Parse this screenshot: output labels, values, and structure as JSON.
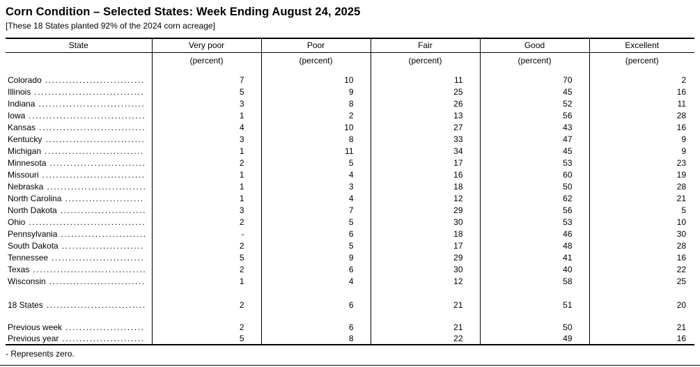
{
  "page": {
    "title": "Corn Condition – Selected States: Week Ending August 24, 2025",
    "subtitle": "[These 18 States planted 92% of the 2024 corn acreage]",
    "footnote": "- Represents zero."
  },
  "table": {
    "columns": [
      {
        "label": "State",
        "unit": ""
      },
      {
        "label": "Very poor",
        "unit": "(percent)"
      },
      {
        "label": "Poor",
        "unit": "(percent)"
      },
      {
        "label": "Fair",
        "unit": "(percent)"
      },
      {
        "label": "Good",
        "unit": "(percent)"
      },
      {
        "label": "Excellent",
        "unit": "(percent)"
      }
    ],
    "rows": [
      {
        "state": "Colorado",
        "very_poor": "7",
        "poor": "10",
        "fair": "11",
        "good": "70",
        "excellent": "2"
      },
      {
        "state": "Illinois",
        "very_poor": "5",
        "poor": "9",
        "fair": "25",
        "good": "45",
        "excellent": "16"
      },
      {
        "state": "Indiana",
        "very_poor": "3",
        "poor": "8",
        "fair": "26",
        "good": "52",
        "excellent": "11"
      },
      {
        "state": "Iowa",
        "very_poor": "1",
        "poor": "2",
        "fair": "13",
        "good": "56",
        "excellent": "28"
      },
      {
        "state": "Kansas",
        "very_poor": "4",
        "poor": "10",
        "fair": "27",
        "good": "43",
        "excellent": "16"
      },
      {
        "state": "Kentucky",
        "very_poor": "3",
        "poor": "8",
        "fair": "33",
        "good": "47",
        "excellent": "9"
      },
      {
        "state": "Michigan",
        "very_poor": "1",
        "poor": "11",
        "fair": "34",
        "good": "45",
        "excellent": "9"
      },
      {
        "state": "Minnesota",
        "very_poor": "2",
        "poor": "5",
        "fair": "17",
        "good": "53",
        "excellent": "23"
      },
      {
        "state": "Missouri",
        "very_poor": "1",
        "poor": "4",
        "fair": "16",
        "good": "60",
        "excellent": "19"
      },
      {
        "state": "Nebraska",
        "very_poor": "1",
        "poor": "3",
        "fair": "18",
        "good": "50",
        "excellent": "28"
      },
      {
        "state": "North Carolina",
        "very_poor": "1",
        "poor": "4",
        "fair": "12",
        "good": "62",
        "excellent": "21"
      },
      {
        "state": "North Dakota",
        "very_poor": "3",
        "poor": "7",
        "fair": "29",
        "good": "56",
        "excellent": "5"
      },
      {
        "state": "Ohio",
        "very_poor": "2",
        "poor": "5",
        "fair": "30",
        "good": "53",
        "excellent": "10"
      },
      {
        "state": "Pennsylvania",
        "very_poor": "-",
        "poor": "6",
        "fair": "18",
        "good": "46",
        "excellent": "30"
      },
      {
        "state": "South Dakota",
        "very_poor": "2",
        "poor": "5",
        "fair": "17",
        "good": "48",
        "excellent": "28"
      },
      {
        "state": "Tennessee",
        "very_poor": "5",
        "poor": "9",
        "fair": "29",
        "good": "41",
        "excellent": "16"
      },
      {
        "state": "Texas",
        "very_poor": "2",
        "poor": "6",
        "fair": "30",
        "good": "40",
        "excellent": "22"
      },
      {
        "state": "Wisconsin",
        "very_poor": "1",
        "poor": "4",
        "fair": "12",
        "good": "58",
        "excellent": "25"
      }
    ],
    "summary_rows": [
      {
        "state": "18 States",
        "very_poor": "2",
        "poor": "6",
        "fair": "21",
        "good": "51",
        "excellent": "20"
      }
    ],
    "comparison_rows": [
      {
        "state": "Previous week",
        "very_poor": "2",
        "poor": "6",
        "fair": "21",
        "good": "50",
        "excellent": "21"
      },
      {
        "state": "Previous year",
        "very_poor": "5",
        "poor": "8",
        "fair": "22",
        "good": "49",
        "excellent": "16"
      }
    ]
  }
}
